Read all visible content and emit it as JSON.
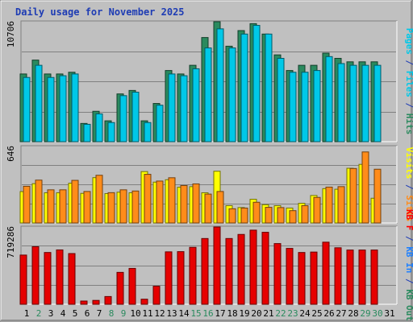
{
  "chart_data": {
    "type": "bar",
    "title": "Daily usage for November 2025",
    "categories": [
      "1",
      "2",
      "3",
      "4",
      "5",
      "6",
      "7",
      "8",
      "9",
      "10",
      "11",
      "12",
      "13",
      "14",
      "15",
      "16",
      "17",
      "18",
      "19",
      "20",
      "21",
      "22",
      "23",
      "24",
      "25",
      "26",
      "27",
      "28",
      "29",
      "30",
      "31"
    ],
    "weekend_days": [
      2,
      8,
      9,
      15,
      16,
      22,
      23,
      29,
      30
    ],
    "panels": [
      {
        "id": "top",
        "max_label": "10706",
        "ymax": 10706,
        "right_label": [
          {
            "text": "Pages",
            "color": "#00c8e8"
          },
          {
            "text": " / ",
            "color": "#1e3cb4"
          },
          {
            "text": "Files",
            "color": "#00c8e8"
          },
          {
            "text": " / ",
            "color": "#1e3cb4"
          },
          {
            "text": "Hits",
            "color": "#2a8a5e"
          }
        ],
        "series": [
          {
            "name": "Hits",
            "color": "#2a8a5e",
            "values": [
              6043,
              7283,
              6043,
              6043,
              6197,
              1627,
              2712,
              1860,
              4262,
              4572,
              1860,
              3410,
              6352,
              6043,
              6817,
              9297,
              10706,
              8522,
              9916,
              10534,
              9606,
              7747,
              6352,
              6817,
              6817,
              7903,
              7438,
              7128,
              7128,
              7128,
              0
            ]
          },
          {
            "name": "Files",
            "color": "#00c8e8",
            "values": [
              5732,
              6817,
              5732,
              5887,
              6043,
              1550,
              2480,
              1705,
              4108,
              4418,
              1705,
              3255,
              6043,
              5887,
              6507,
              8367,
              10070,
              8367,
              9606,
              10380,
              9606,
              7438,
              6197,
              6197,
              6352,
              7593,
              6972,
              6817,
              6817,
              6817,
              0
            ]
          }
        ]
      },
      {
        "id": "middle",
        "max_label": "646",
        "ymax": 646,
        "right_label": [
          {
            "text": "Visits",
            "color": "#ffff00"
          },
          {
            "text": " / ",
            "color": "#1e3cb4"
          },
          {
            "text": "Sites",
            "color": "#ff8c1a"
          }
        ],
        "series": [
          {
            "name": "Visits",
            "color": "#ffff00",
            "values": [
              265,
              332,
              255,
              255,
              336,
              250,
              383,
              248,
              260,
              255,
              434,
              345,
              365,
              302,
              307,
              255,
              437,
              146,
              130,
              200,
              154,
              146,
              126,
              166,
              232,
              290,
              285,
              462,
              495,
              209,
              0
            ]
          },
          {
            "name": "Sites",
            "color": "#ff8c1a",
            "values": [
              310,
              362,
              280,
              280,
              360,
              266,
              403,
              256,
              280,
              270,
              411,
              354,
              382,
              316,
              330,
              244,
              266,
              120,
              126,
              175,
              132,
              130,
              104,
              146,
              216,
              303,
              307,
              460,
              600,
              454,
              0
            ]
          }
        ]
      },
      {
        "id": "bottom",
        "max_label": "719286",
        "ymax": 719286,
        "right_label": [
          {
            "text": "KB F",
            "color": "#ff0000"
          },
          {
            "text": " / ",
            "color": "#1e3cb4"
          },
          {
            "text": "KB In",
            "color": "#1e80ff"
          },
          {
            "text": " / ",
            "color": "#1e3cb4"
          },
          {
            "text": "KB Out",
            "color": "#2a8a5e"
          }
        ],
        "series": [
          {
            "name": "KB F",
            "color": "#e60000",
            "values": [
              458000,
              536000,
              482000,
              506000,
              472000,
              30000,
              36000,
              72000,
              297000,
              334000,
              47000,
              168000,
              488000,
              490000,
              530000,
              612000,
              719286,
              612000,
              650000,
              690000,
              670000,
              565000,
              520000,
              482000,
              486000,
              578000,
              526000,
              505000,
              505000,
              505000,
              0
            ]
          }
        ]
      }
    ]
  }
}
